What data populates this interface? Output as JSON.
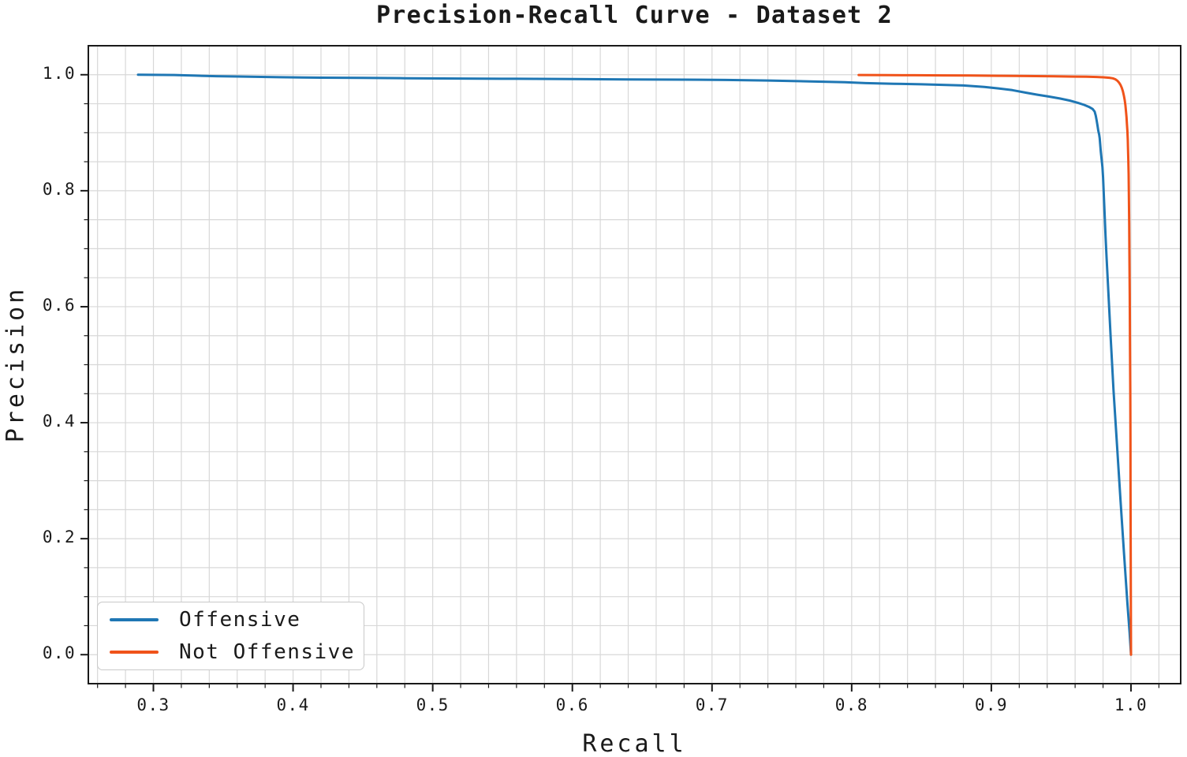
{
  "chart_data": {
    "type": "line",
    "title": "Precision-Recall Curve - Dataset 2",
    "xlabel": "Recall",
    "ylabel": "Precision",
    "xlim": [
      0.2534,
      1.0356
    ],
    "ylim": [
      -0.05,
      1.05
    ],
    "x_ticks": [
      0.3,
      0.4,
      0.5,
      0.6,
      0.7,
      0.8,
      0.9,
      1.0
    ],
    "x_tick_labels": [
      "0.3",
      "0.4",
      "0.5",
      "0.6",
      "0.7",
      "0.8",
      "0.9",
      "1.0"
    ],
    "y_ticks": [
      0.0,
      0.2,
      0.4,
      0.6,
      0.8,
      1.0
    ],
    "y_tick_labels": [
      "0.0",
      "0.2",
      "0.4",
      "0.6",
      "0.8",
      "1.0"
    ],
    "x_minor_step": 0.02,
    "y_minor_step": 0.05,
    "grid": "both",
    "legend_position": "lower-left",
    "colors": {
      "grid": "#d8d8d8",
      "spine": "#1a1a1a",
      "text": "#1a1a1a",
      "background": "#ffffff",
      "legend_border": "#c9c9c9"
    },
    "series": [
      {
        "name": "Offensive",
        "color": "#1f77b4",
        "points": [
          [
            0.289,
            1.0
          ],
          [
            0.315,
            0.9995
          ],
          [
            0.33,
            0.9985
          ],
          [
            0.345,
            0.9975
          ],
          [
            0.36,
            0.997
          ],
          [
            0.39,
            0.9958
          ],
          [
            0.42,
            0.995
          ],
          [
            0.45,
            0.9945
          ],
          [
            0.48,
            0.994
          ],
          [
            0.52,
            0.9935
          ],
          [
            0.56,
            0.993
          ],
          [
            0.6,
            0.9925
          ],
          [
            0.64,
            0.992
          ],
          [
            0.68,
            0.9915
          ],
          [
            0.71,
            0.991
          ],
          [
            0.74,
            0.99
          ],
          [
            0.77,
            0.9885
          ],
          [
            0.795,
            0.987
          ],
          [
            0.81,
            0.9855
          ],
          [
            0.83,
            0.9845
          ],
          [
            0.85,
            0.9835
          ],
          [
            0.865,
            0.9825
          ],
          [
            0.88,
            0.9815
          ],
          [
            0.895,
            0.979
          ],
          [
            0.905,
            0.9765
          ],
          [
            0.915,
            0.9735
          ],
          [
            0.925,
            0.969
          ],
          [
            0.933,
            0.9655
          ],
          [
            0.941,
            0.9625
          ],
          [
            0.949,
            0.959
          ],
          [
            0.956,
            0.9555
          ],
          [
            0.962,
            0.9515
          ],
          [
            0.9665,
            0.948
          ],
          [
            0.97,
            0.9445
          ],
          [
            0.9725,
            0.941
          ],
          [
            0.974,
            0.9365
          ],
          [
            0.9748,
            0.9295
          ],
          [
            0.9754,
            0.9215
          ],
          [
            0.976,
            0.9125
          ],
          [
            0.9766,
            0.9035
          ],
          [
            0.9772,
            0.897
          ],
          [
            0.9776,
            0.8905
          ],
          [
            0.978,
            0.879
          ],
          [
            0.9784,
            0.8675
          ],
          [
            0.9788,
            0.8585
          ],
          [
            0.9792,
            0.8495
          ],
          [
            0.9796,
            0.8405
          ],
          [
            0.98,
            0.8225
          ],
          [
            0.9804,
            0.8
          ],
          [
            0.9808,
            0.7775
          ],
          [
            0.9812,
            0.755
          ],
          [
            0.9818,
            0.7225
          ],
          [
            0.9825,
            0.6855
          ],
          [
            0.9838,
            0.625
          ],
          [
            0.9855,
            0.545
          ],
          [
            0.9875,
            0.4565
          ],
          [
            0.99,
            0.3605
          ],
          [
            0.9925,
            0.266
          ],
          [
            0.995,
            0.1755
          ],
          [
            0.9975,
            0.0875
          ],
          [
            0.999,
            0.0385
          ],
          [
            1.0,
            0.0
          ]
        ]
      },
      {
        "name": "Not Offensive",
        "color": "#f0531a",
        "points": [
          [
            0.805,
            0.9995
          ],
          [
            0.825,
            0.9993
          ],
          [
            0.845,
            0.9991
          ],
          [
            0.865,
            0.9989
          ],
          [
            0.885,
            0.9986
          ],
          [
            0.905,
            0.9982
          ],
          [
            0.925,
            0.9978
          ],
          [
            0.945,
            0.9973
          ],
          [
            0.958,
            0.9969
          ],
          [
            0.968,
            0.9965
          ],
          [
            0.9755,
            0.9961
          ],
          [
            0.981,
            0.9955
          ],
          [
            0.9845,
            0.9948
          ],
          [
            0.987,
            0.9938
          ],
          [
            0.9888,
            0.9922
          ],
          [
            0.9902,
            0.9898
          ],
          [
            0.9914,
            0.9866
          ],
          [
            0.9925,
            0.9824
          ],
          [
            0.9934,
            0.9775
          ],
          [
            0.9942,
            0.9715
          ],
          [
            0.9949,
            0.9645
          ],
          [
            0.9955,
            0.9565
          ],
          [
            0.996,
            0.9475
          ],
          [
            0.9964,
            0.9375
          ],
          [
            0.9968,
            0.927
          ],
          [
            0.9971,
            0.9155
          ],
          [
            0.9974,
            0.9035
          ],
          [
            0.9977,
            0.888
          ],
          [
            0.9979,
            0.8725
          ],
          [
            0.9981,
            0.853
          ],
          [
            0.9983,
            0.8285
          ],
          [
            0.9985,
            0.7925
          ],
          [
            0.9987,
            0.7445
          ],
          [
            0.9989,
            0.6865
          ],
          [
            0.9991,
            0.6185
          ],
          [
            0.9993,
            0.5405
          ],
          [
            0.9995,
            0.4525
          ],
          [
            0.9996,
            0.3725
          ],
          [
            0.9997,
            0.2845
          ],
          [
            0.9998,
            0.1885
          ],
          [
            0.9999,
            0.0925
          ],
          [
            1.0,
            0.0
          ]
        ]
      }
    ]
  }
}
